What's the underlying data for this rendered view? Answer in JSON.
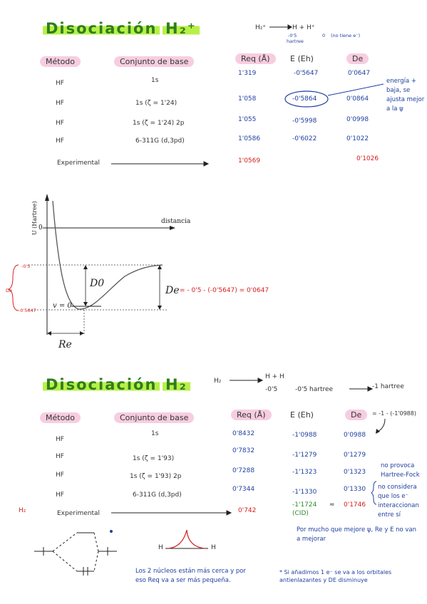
{
  "section1": {
    "title": "Disociación",
    "species": "H₂⁺",
    "reaction": {
      "left": "H₂⁺",
      "products": "H  +  H⁺",
      "energy_h": "-0'5",
      "energy_hplus": "0",
      "note": "(no tiene e⁻)",
      "unit": "hartree"
    },
    "headers": {
      "method": "Método",
      "basis": "Conjunto de base",
      "req": "Req (Å)",
      "energy": "E (Eh)",
      "de": "De"
    },
    "rows": [
      {
        "method": "HF",
        "basis": "1s",
        "req": "1'319",
        "energy": "-0'5647",
        "de": "0'0647"
      },
      {
        "method": "HF",
        "basis": "1s (ζ = 1'24)",
        "req": "1'058",
        "energy": "-0'5864",
        "de": "0'0864"
      },
      {
        "method": "HF",
        "basis": "1s (ζ = 1'24) 2p",
        "req": "1'055",
        "energy": "-0'5998",
        "de": "0'0998"
      },
      {
        "method": "HF",
        "basis": "6-311G (d,3pd)",
        "req": "1'0586",
        "energy": "-0'6022",
        "de": "0'1022"
      }
    ],
    "experimental": {
      "label": "Experimental",
      "req": "1'0569",
      "de": "0'1026"
    },
    "annotation": "energía + baja, se ajusta mejor a la ψ"
  },
  "graph": {
    "ylabel": "U (Hartree)",
    "xlabel": "distancia",
    "zero": "0",
    "D0": "D0",
    "De": "De",
    "v0": "v = 0",
    "Re": "Re",
    "level_top": "-0'5",
    "level_bottom": "-0'5647",
    "brace_label": "De",
    "de_formula": "= - 0'5 - (-0'5647) = 0'0647"
  },
  "section2": {
    "title": "Disociación",
    "species": "H₂",
    "reaction": {
      "left": "H₂",
      "products": "H   +   H",
      "energy_h": "-0'5",
      "energy_h2": "-0'5 hartree",
      "total": "-1 hartree"
    },
    "headers": {
      "method": "Método",
      "basis": "Conjunto de base",
      "req": "Req (Å)",
      "energy": "E (Eh)",
      "de": "De",
      "de_formula": "= -1 - (-1'0988)"
    },
    "rows": [
      {
        "method": "HF",
        "basis": "1s",
        "req": "0'8432",
        "energy": "-1'0988",
        "de": "0'0988"
      },
      {
        "method": "HF",
        "basis": "1s (ζ = 1'93)",
        "req": "0'7832",
        "energy": "-1'1279",
        "de": "0'1279"
      },
      {
        "method": "HF",
        "basis": "1s (ζ = 1'93) 2p",
        "req": "0'7288",
        "energy": "-1'1323",
        "de": "0'1323"
      },
      {
        "method": "HF",
        "basis": "6-311G (d,3pd)",
        "req": "0'7344",
        "energy": "-1'1330",
        "de": "0'1330"
      }
    ],
    "experimental": {
      "label": "Experimental",
      "species": "H₂",
      "req": "0'742",
      "energy": "-1'1724",
      "energy_method": "(CID)",
      "approx": "≈",
      "de": "0'1746"
    },
    "annotation1": "no provoca Hartree-Fock",
    "annotation2": "no considera que los e⁻ interaccionan entre sí",
    "note_bottom_right1": "Por mucho que mejore ψ, Re y E no van a mejorar",
    "note_bottom_left": "Los 2 núcleos están más cerca y por eso Req va a ser más pequeña.",
    "note_bottom_right2": "* Si añadimos 1 e⁻ se va a los orbitales antienlazantes y DE disminuye",
    "mo_label_left": "H",
    "mo_label_right": "H"
  }
}
